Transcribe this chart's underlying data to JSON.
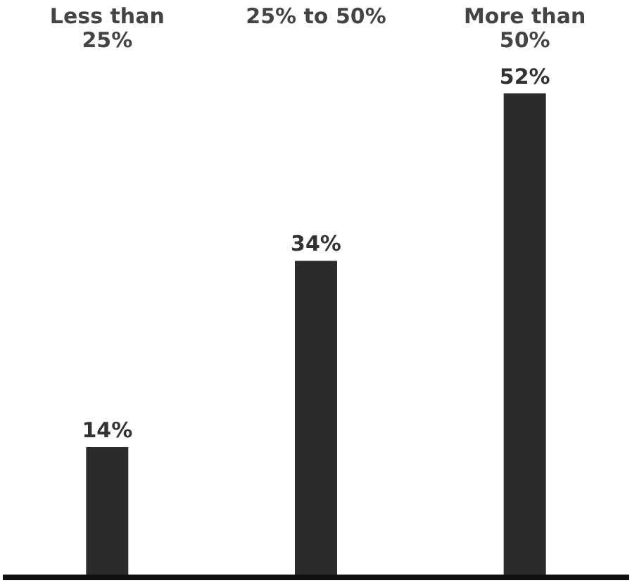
{
  "chart_data": {
    "type": "bar",
    "categories": [
      "Less than 25%",
      "25% to 50%",
      "More than 50%"
    ],
    "values": [
      14,
      34,
      52
    ],
    "color": "#2b2b2b",
    "value_labels": [
      "14%",
      "34%",
      "52%"
    ]
  }
}
